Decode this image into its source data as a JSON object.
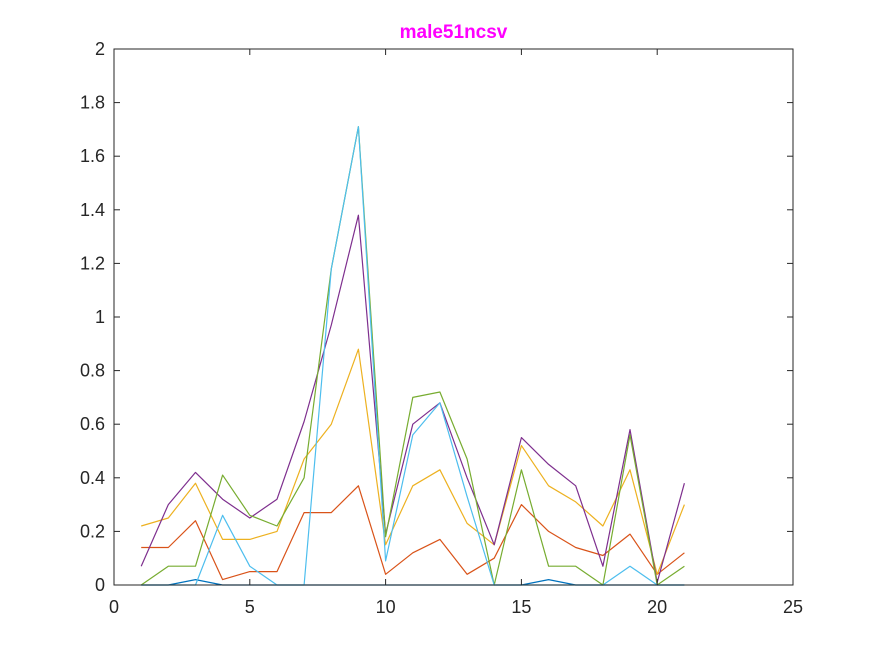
{
  "chart_data": {
    "type": "line",
    "title": "male51ncsv",
    "title_color": "#ff00ff",
    "xlabel": "",
    "ylabel": "",
    "xlim": [
      0,
      25
    ],
    "ylim": [
      0,
      2
    ],
    "xticks": [
      0,
      5,
      10,
      15,
      20,
      25
    ],
    "yticks": [
      0,
      0.2,
      0.4,
      0.6,
      0.8,
      1,
      1.2,
      1.4,
      1.6,
      1.8,
      2
    ],
    "xtick_labels": [
      "0",
      "5",
      "10",
      "15",
      "20",
      "25"
    ],
    "ytick_labels": [
      "0",
      "0.2",
      "0.4",
      "0.6",
      "0.8",
      "1",
      "1.2",
      "1.4",
      "1.6",
      "1.8",
      "2"
    ],
    "grid": false,
    "box": true,
    "x": [
      1,
      2,
      3,
      4,
      5,
      6,
      7,
      8,
      9,
      10,
      11,
      12,
      13,
      14,
      15,
      16,
      17,
      18,
      19,
      20,
      21
    ],
    "series": [
      {
        "color": "#0072bd",
        "values": [
          0,
          0,
          0.02,
          0,
          0,
          0,
          0,
          0,
          0,
          0,
          0,
          0,
          0,
          0,
          0,
          0.02,
          0,
          0,
          0,
          0,
          0
        ]
      },
      {
        "color": "#d95319",
        "values": [
          0.14,
          0.14,
          0.24,
          0.02,
          0.05,
          0.05,
          0.27,
          0.27,
          0.37,
          0.04,
          0.12,
          0.17,
          0.04,
          0.1,
          0.3,
          0.2,
          0.14,
          0.11,
          0.19,
          0.04,
          0.12
        ]
      },
      {
        "color": "#edb120",
        "values": [
          0.22,
          0.25,
          0.38,
          0.17,
          0.17,
          0.2,
          0.47,
          0.6,
          0.88,
          0.15,
          0.37,
          0.43,
          0.23,
          0.15,
          0.52,
          0.37,
          0.31,
          0.22,
          0.43,
          0.04,
          0.3
        ]
      },
      {
        "color": "#7e2f8e",
        "values": [
          0.07,
          0.3,
          0.42,
          0.32,
          0.25,
          0.32,
          0.61,
          0.97,
          1.38,
          0.19,
          0.6,
          0.68,
          0.4,
          0.15,
          0.55,
          0.45,
          0.37,
          0.07,
          0.58,
          0.01,
          0.38
        ]
      },
      {
        "color": "#77ac30",
        "values": [
          0,
          0.07,
          0.07,
          0.41,
          0.26,
          0.22,
          0.4,
          1.18,
          1.71,
          0.18,
          0.7,
          0.72,
          0.47,
          0,
          0.43,
          0.07,
          0.07,
          0,
          0.56,
          0,
          0.07
        ]
      },
      {
        "color": "#4dbeee",
        "values": [
          0,
          0,
          0,
          0.26,
          0.07,
          0,
          0,
          1.18,
          1.71,
          0.09,
          0.56,
          0.68,
          0.33,
          0,
          0,
          0,
          0,
          0,
          0.07,
          0,
          0
        ]
      }
    ]
  }
}
